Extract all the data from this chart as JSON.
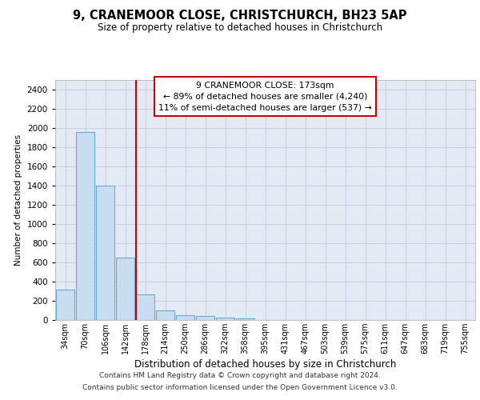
{
  "title": "9, CRANEMOOR CLOSE, CHRISTCHURCH, BH23 5AP",
  "subtitle": "Size of property relative to detached houses in Christchurch",
  "xlabel": "Distribution of detached houses by size in Christchurch",
  "ylabel": "Number of detached properties",
  "footnote1": "Contains HM Land Registry data © Crown copyright and database right 2024.",
  "footnote2": "Contains public sector information licensed under the Open Government Licence v3.0.",
  "property_label": "9 CRANEMOOR CLOSE: 173sqm",
  "annotation_line1": "← 89% of detached houses are smaller (4,240)",
  "annotation_line2": "11% of semi-detached houses are larger (537) →",
  "vline_color": "#cc0000",
  "bar_color": "#c8ddf0",
  "bar_edge_color": "#6aaad4",
  "grid_color": "#c5d0e0",
  "background_color": "#e4eaf4",
  "categories": [
    "34sqm",
    "70sqm",
    "106sqm",
    "142sqm",
    "178sqm",
    "214sqm",
    "250sqm",
    "286sqm",
    "322sqm",
    "358sqm",
    "395sqm",
    "431sqm",
    "467sqm",
    "503sqm",
    "539sqm",
    "575sqm",
    "611sqm",
    "647sqm",
    "683sqm",
    "719sqm",
    "755sqm"
  ],
  "values": [
    320,
    1960,
    1400,
    650,
    270,
    100,
    50,
    40,
    25,
    20,
    0,
    0,
    0,
    0,
    0,
    0,
    0,
    0,
    0,
    0,
    0
  ],
  "vline_index": 4,
  "ylim": [
    0,
    2500
  ],
  "yticks": [
    0,
    200,
    400,
    600,
    800,
    1000,
    1200,
    1400,
    1600,
    1800,
    2000,
    2200,
    2400
  ]
}
